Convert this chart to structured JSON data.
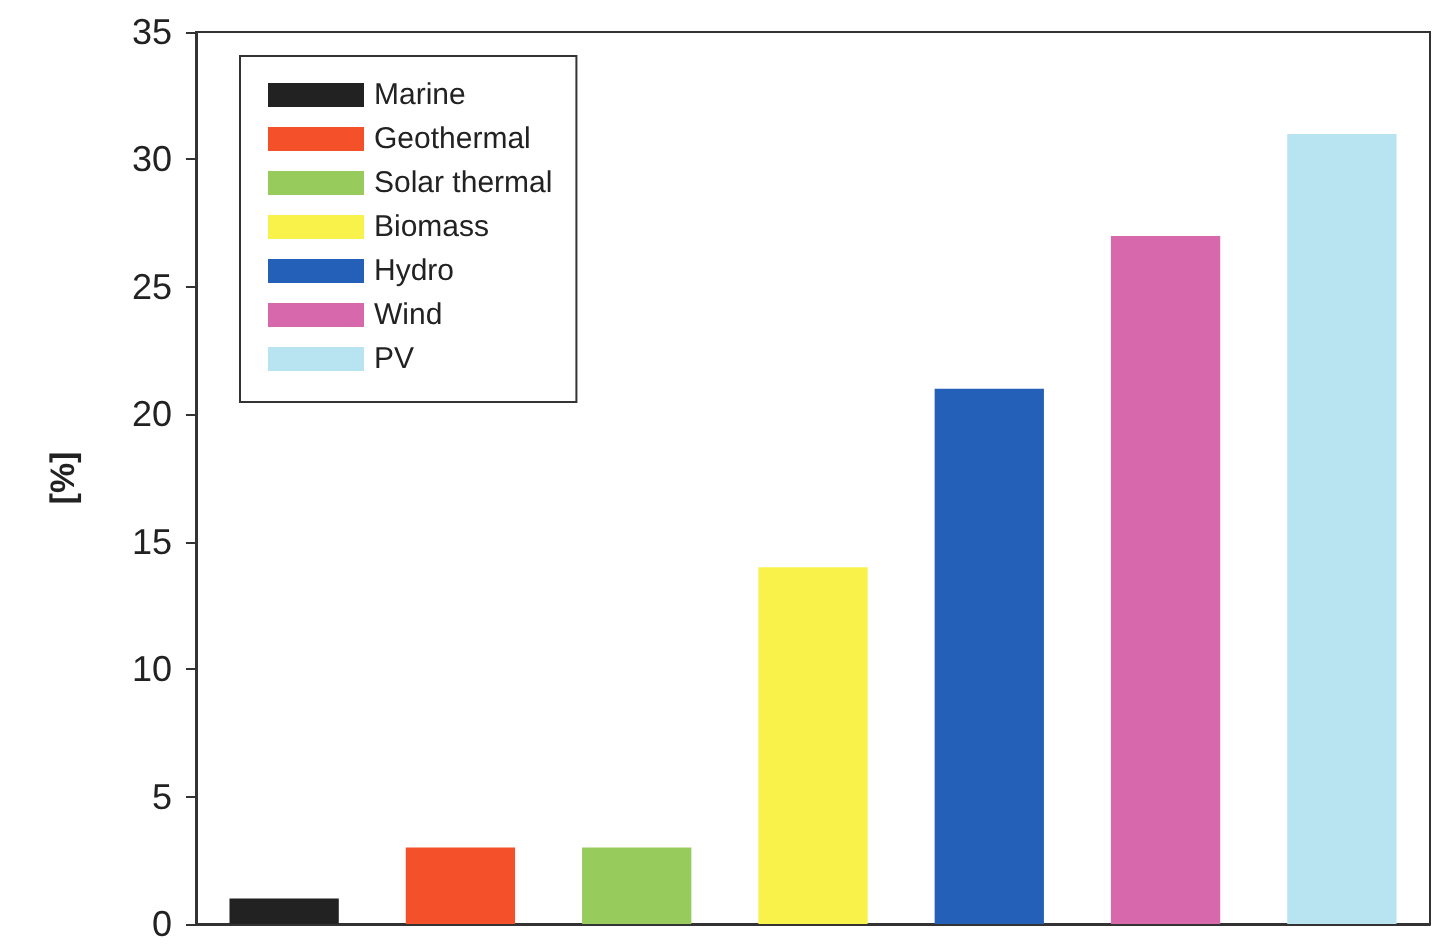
{
  "chart_data": {
    "type": "bar",
    "ylabel": "[%]",
    "categories": [
      null,
      null,
      null,
      null,
      null,
      null,
      null
    ],
    "stacked": true,
    "series": [
      {
        "name": "Marine",
        "color": "#222222",
        "values": [
          1,
          null,
          null,
          null,
          null,
          null,
          null
        ]
      },
      {
        "name": "Geothermal",
        "color": "#f4502a",
        "values": [
          null,
          3,
          null,
          null,
          null,
          null,
          null
        ]
      },
      {
        "name": "Solar thermal",
        "color": "#97cc5c",
        "values": [
          null,
          null,
          3,
          null,
          null,
          null,
          null
        ]
      },
      {
        "name": "Biomass",
        "color": "#f8f24a",
        "values": [
          null,
          null,
          null,
          14,
          null,
          null,
          null
        ]
      },
      {
        "name": "Hydro",
        "color": "#2460b8",
        "values": [
          null,
          null,
          null,
          null,
          21,
          null,
          null
        ]
      },
      {
        "name": "Wind",
        "color": "#d868ac",
        "values": [
          null,
          null,
          null,
          null,
          null,
          27,
          null
        ]
      },
      {
        "name": "PV",
        "color": "#b8e4f2",
        "values": [
          null,
          null,
          null,
          null,
          null,
          null,
          31
        ]
      }
    ],
    "ylim": [
      0,
      35
    ],
    "yticks": [
      0,
      5,
      10,
      15,
      20,
      25,
      30,
      35
    ],
    "grid": false,
    "legend": "top left"
  }
}
